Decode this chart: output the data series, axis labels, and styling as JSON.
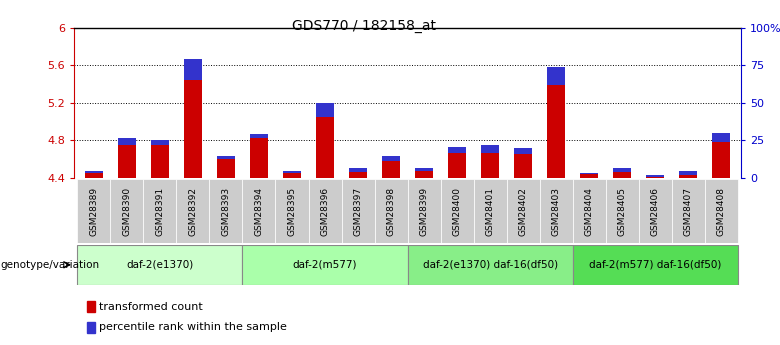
{
  "title": "GDS770 / 182158_at",
  "samples": [
    "GSM28389",
    "GSM28390",
    "GSM28391",
    "GSM28392",
    "GSM28393",
    "GSM28394",
    "GSM28395",
    "GSM28396",
    "GSM28397",
    "GSM28398",
    "GSM28399",
    "GSM28400",
    "GSM28401",
    "GSM28402",
    "GSM28403",
    "GSM28404",
    "GSM28405",
    "GSM28406",
    "GSM28407",
    "GSM28408"
  ],
  "transformed_count": [
    4.47,
    4.82,
    4.8,
    5.67,
    4.63,
    4.87,
    4.47,
    5.2,
    4.5,
    4.63,
    4.5,
    4.73,
    4.75,
    4.72,
    5.58,
    4.45,
    4.5,
    4.43,
    4.47,
    4.88
  ],
  "percentile_rank": [
    3,
    10,
    8,
    33,
    5,
    7,
    3,
    22,
    5,
    8,
    4,
    10,
    12,
    9,
    27,
    2,
    5,
    3,
    6,
    14
  ],
  "ylim_left": [
    4.4,
    6.0
  ],
  "ylim_right": [
    0,
    100
  ],
  "yticks_left": [
    4.4,
    4.8,
    5.2,
    5.6,
    6.0
  ],
  "ytick_labels_left": [
    "4.4",
    "4.8",
    "5.2",
    "5.6",
    "6"
  ],
  "yticks_right": [
    0,
    25,
    50,
    75,
    100
  ],
  "ytick_labels_right": [
    "0",
    "25",
    "50",
    "75",
    "100%"
  ],
  "bar_color_red": "#cc0000",
  "bar_color_blue": "#3333cc",
  "bar_width": 0.55,
  "groups": [
    {
      "label": "daf-2(e1370)",
      "start": 0,
      "end": 4,
      "color": "#ccffcc"
    },
    {
      "label": "daf-2(m577)",
      "start": 5,
      "end": 9,
      "color": "#aaffaa"
    },
    {
      "label": "daf-2(e1370) daf-16(df50)",
      "start": 10,
      "end": 14,
      "color": "#88ee88"
    },
    {
      "label": "daf-2(m577) daf-16(df50)",
      "start": 15,
      "end": 19,
      "color": "#55dd55"
    }
  ],
  "genotype_label": "genotype/variation",
  "legend_red": "transformed count",
  "legend_blue": "percentile rank within the sample",
  "axis_color_left": "#cc0000",
  "axis_color_right": "#0000cc",
  "xtick_bg": "#cccccc",
  "blue_segment_scale": 0.007
}
